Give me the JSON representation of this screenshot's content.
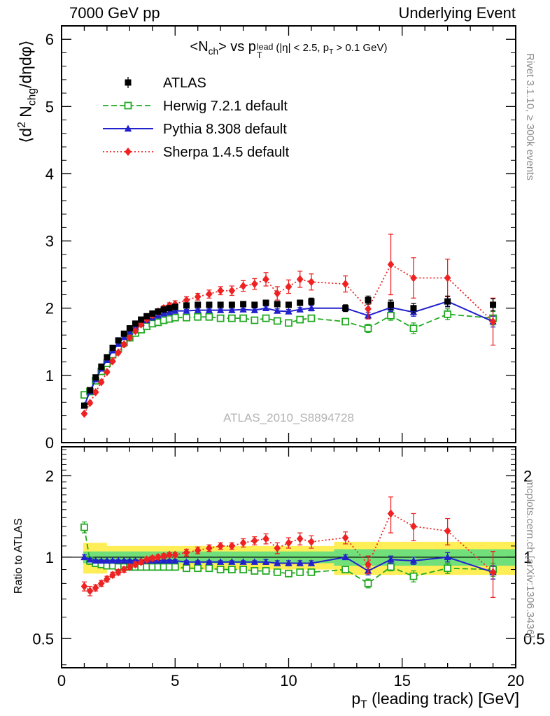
{
  "header": {
    "left": "7000 GeV pp",
    "right": "Underlying Event"
  },
  "title": {
    "pre": "<N",
    "sub1": "ch",
    "mid": "> vs p",
    "sup": "lead",
    "subT": "T",
    "cond_pre": "(|η| < 2.5, p",
    "cond_sub": "T",
    "cond_post": " > 0.1 GeV)"
  },
  "axis_labels": {
    "y_main_pre": "⟨d",
    "y_main_sup": "2",
    "y_main_mid": " N",
    "y_main_sub": "chg",
    "y_main_post": "/dηdφ⟩",
    "y_ratio": "Ratio to ATLAS",
    "x_pre": "p",
    "x_sub": "T",
    "x_post": " (leading track) [GeV]"
  },
  "side_labels": {
    "top": "Rivet 3.1.10, ≥ 300k events",
    "bottom": "mcplots.cern.ch [arXiv:1306.3436]"
  },
  "watermark": "ATLAS_2010_S8894728",
  "chart_data": {
    "type": "line",
    "xlim": [
      0,
      20
    ],
    "ylim_main": [
      0,
      6.2
    ],
    "yticks_main": [
      0,
      1,
      2,
      3,
      4,
      5,
      6
    ],
    "ytick_minor_step_main": 0.2,
    "xticks": [
      0,
      5,
      10,
      15,
      20
    ],
    "xtick_minor_step": 1,
    "ratio": {
      "log": true,
      "ylim": [
        0.39,
        2.56
      ],
      "ticks": [
        {
          "v": 0.5,
          "label": "0.5"
        },
        {
          "v": 1,
          "label": "1"
        },
        {
          "v": 2,
          "label": "2"
        }
      ],
      "minor": [
        0.4,
        0.6,
        0.7,
        0.8,
        0.9,
        1.1,
        1.2,
        1.3,
        1.4,
        1.5,
        1.6,
        1.7,
        1.8,
        1.9,
        2.1,
        2.2,
        2.3,
        2.4,
        2.5
      ]
    },
    "bands": {
      "yellow": {
        "color": "#ffee55",
        "segments": [
          {
            "x0": 0.95,
            "x1": 2.0,
            "lo": 0.87,
            "hi": 1.13
          },
          {
            "x0": 2.0,
            "x1": 12.0,
            "lo": 0.9,
            "hi": 1.1
          },
          {
            "x0": 12.0,
            "x1": 20.0,
            "lo": 0.86,
            "hi": 1.14
          }
        ]
      },
      "green": {
        "color": "#71e07a",
        "segments": [
          {
            "x0": 0.95,
            "x1": 12.0,
            "lo": 0.95,
            "hi": 1.05
          },
          {
            "x0": 12.0,
            "x1": 20.0,
            "lo": 0.93,
            "hi": 1.07
          }
        ]
      }
    },
    "ref_line": 1,
    "x": [
      1.0,
      1.25,
      1.5,
      1.75,
      2.0,
      2.25,
      2.5,
      2.75,
      3.0,
      3.25,
      3.5,
      3.75,
      4.0,
      4.25,
      4.5,
      4.75,
      5.0,
      5.5,
      6.0,
      6.5,
      7.0,
      7.5,
      8.0,
      8.5,
      9.0,
      9.5,
      10.0,
      10.5,
      11.0,
      12.5,
      13.5,
      14.5,
      15.5,
      17.0,
      19.0
    ],
    "series": [
      {
        "name": "ATLAS",
        "color": "#000000",
        "marker": "square-filled",
        "line": "none",
        "y": [
          0.55,
          0.78,
          0.97,
          1.13,
          1.27,
          1.41,
          1.52,
          1.62,
          1.7,
          1.77,
          1.83,
          1.88,
          1.92,
          1.95,
          1.98,
          2.0,
          2.02,
          2.04,
          2.05,
          2.05,
          2.05,
          2.05,
          2.06,
          2.05,
          2.08,
          2.06,
          2.05,
          2.08,
          2.1,
          2.0,
          2.12,
          2.05,
          2.0,
          2.1,
          2.05
        ],
        "yerr": [
          0.02,
          0.02,
          0.02,
          0.02,
          0.02,
          0.02,
          0.02,
          0.02,
          0.02,
          0.02,
          0.02,
          0.02,
          0.02,
          0.02,
          0.02,
          0.02,
          0.03,
          0.03,
          0.03,
          0.03,
          0.03,
          0.03,
          0.03,
          0.03,
          0.04,
          0.04,
          0.04,
          0.04,
          0.05,
          0.05,
          0.06,
          0.07,
          0.07,
          0.08,
          0.09
        ],
        "ratio": null,
        "ratio_err": null
      },
      {
        "name": "Herwig 7.2.1 default",
        "color": "#22aa22",
        "marker": "square-open",
        "line": "dashed",
        "y": [
          0.71,
          0.76,
          0.92,
          1.06,
          1.18,
          1.31,
          1.4,
          1.49,
          1.56,
          1.63,
          1.68,
          1.73,
          1.77,
          1.79,
          1.82,
          1.84,
          1.86,
          1.86,
          1.87,
          1.87,
          1.85,
          1.85,
          1.85,
          1.82,
          1.85,
          1.81,
          1.78,
          1.83,
          1.85,
          1.8,
          1.7,
          1.89,
          1.7,
          1.91,
          1.85
        ],
        "yerr": [
          0.03,
          0.02,
          0.02,
          0.02,
          0.02,
          0.02,
          0.02,
          0.02,
          0.02,
          0.02,
          0.02,
          0.02,
          0.02,
          0.02,
          0.02,
          0.02,
          0.02,
          0.02,
          0.02,
          0.02,
          0.02,
          0.02,
          0.03,
          0.03,
          0.03,
          0.03,
          0.03,
          0.04,
          0.04,
          0.04,
          0.06,
          0.07,
          0.08,
          0.08,
          0.1
        ],
        "ratio": [
          1.29,
          0.97,
          0.95,
          0.94,
          0.93,
          0.93,
          0.92,
          0.92,
          0.92,
          0.92,
          0.92,
          0.92,
          0.92,
          0.92,
          0.92,
          0.92,
          0.92,
          0.91,
          0.91,
          0.91,
          0.9,
          0.9,
          0.9,
          0.89,
          0.89,
          0.88,
          0.87,
          0.88,
          0.88,
          0.9,
          0.8,
          0.92,
          0.85,
          0.91,
          0.9
        ],
        "ratio_err": [
          0.06,
          0.03,
          0.02,
          0.02,
          0.02,
          0.01,
          0.01,
          0.01,
          0.01,
          0.01,
          0.01,
          0.01,
          0.01,
          0.01,
          0.01,
          0.01,
          0.01,
          0.01,
          0.01,
          0.01,
          0.01,
          0.01,
          0.01,
          0.01,
          0.02,
          0.02,
          0.02,
          0.02,
          0.02,
          0.02,
          0.03,
          0.03,
          0.04,
          0.04,
          0.05
        ]
      },
      {
        "name": "Pythia 8.308 default",
        "color": "#2222cc",
        "marker": "triangle-filled",
        "line": "solid",
        "y": [
          0.55,
          0.76,
          0.94,
          1.1,
          1.23,
          1.37,
          1.47,
          1.57,
          1.65,
          1.72,
          1.78,
          1.82,
          1.86,
          1.89,
          1.92,
          1.94,
          1.96,
          1.96,
          1.97,
          1.97,
          1.97,
          1.97,
          1.98,
          1.97,
          2.0,
          1.96,
          1.95,
          1.98,
          2.0,
          2.0,
          1.89,
          2.01,
          1.94,
          2.1,
          1.8
        ],
        "yerr": [
          0.02,
          0.02,
          0.02,
          0.02,
          0.02,
          0.02,
          0.02,
          0.02,
          0.02,
          0.02,
          0.02,
          0.02,
          0.02,
          0.02,
          0.02,
          0.02,
          0.02,
          0.02,
          0.02,
          0.02,
          0.02,
          0.02,
          0.02,
          0.03,
          0.03,
          0.03,
          0.03,
          0.03,
          0.04,
          0.04,
          0.05,
          0.06,
          0.06,
          0.07,
          0.08
        ],
        "ratio": [
          1.0,
          0.98,
          0.97,
          0.97,
          0.97,
          0.97,
          0.97,
          0.97,
          0.97,
          0.97,
          0.97,
          0.97,
          0.97,
          0.97,
          0.97,
          0.97,
          0.97,
          0.96,
          0.96,
          0.96,
          0.96,
          0.96,
          0.96,
          0.96,
          0.96,
          0.95,
          0.95,
          0.95,
          0.95,
          1.0,
          0.89,
          0.98,
          0.97,
          1.0,
          0.88
        ],
        "ratio_err": [
          0.02,
          0.01,
          0.01,
          0.01,
          0.01,
          0.01,
          0.01,
          0.01,
          0.01,
          0.01,
          0.01,
          0.01,
          0.01,
          0.01,
          0.01,
          0.01,
          0.01,
          0.01,
          0.01,
          0.01,
          0.01,
          0.01,
          0.01,
          0.01,
          0.02,
          0.02,
          0.02,
          0.02,
          0.02,
          0.02,
          0.03,
          0.03,
          0.03,
          0.04,
          0.05
        ]
      },
      {
        "name": "Sherpa 1.4.5 default",
        "color": "#ee2222",
        "marker": "diamond-filled",
        "line": "dotted",
        "y": [
          0.43,
          0.59,
          0.75,
          0.9,
          1.05,
          1.21,
          1.34,
          1.46,
          1.56,
          1.66,
          1.76,
          1.84,
          1.9,
          1.95,
          2.0,
          2.04,
          2.06,
          2.12,
          2.17,
          2.21,
          2.26,
          2.26,
          2.33,
          2.36,
          2.43,
          2.22,
          2.32,
          2.43,
          2.39,
          2.36,
          1.99,
          2.65,
          2.45,
          2.45,
          1.8
        ],
        "yerr": [
          0.02,
          0.02,
          0.02,
          0.02,
          0.02,
          0.02,
          0.02,
          0.03,
          0.03,
          0.03,
          0.03,
          0.03,
          0.04,
          0.04,
          0.04,
          0.04,
          0.05,
          0.05,
          0.05,
          0.06,
          0.06,
          0.07,
          0.08,
          0.08,
          0.1,
          0.1,
          0.1,
          0.12,
          0.12,
          0.12,
          0.15,
          0.45,
          0.3,
          0.28,
          0.35
        ],
        "ratio": [
          0.78,
          0.75,
          0.77,
          0.8,
          0.83,
          0.86,
          0.88,
          0.9,
          0.92,
          0.94,
          0.96,
          0.98,
          0.99,
          1.0,
          1.01,
          1.02,
          1.02,
          1.04,
          1.06,
          1.08,
          1.1,
          1.1,
          1.13,
          1.15,
          1.17,
          1.08,
          1.13,
          1.17,
          1.14,
          1.18,
          0.94,
          1.45,
          1.3,
          1.25,
          0.88
        ],
        "ratio_err": [
          0.03,
          0.03,
          0.02,
          0.02,
          0.02,
          0.02,
          0.02,
          0.02,
          0.02,
          0.02,
          0.02,
          0.02,
          0.02,
          0.02,
          0.02,
          0.02,
          0.02,
          0.03,
          0.03,
          0.03,
          0.03,
          0.03,
          0.04,
          0.04,
          0.05,
          0.05,
          0.05,
          0.06,
          0.06,
          0.06,
          0.07,
          0.22,
          0.15,
          0.14,
          0.17
        ]
      }
    ]
  }
}
